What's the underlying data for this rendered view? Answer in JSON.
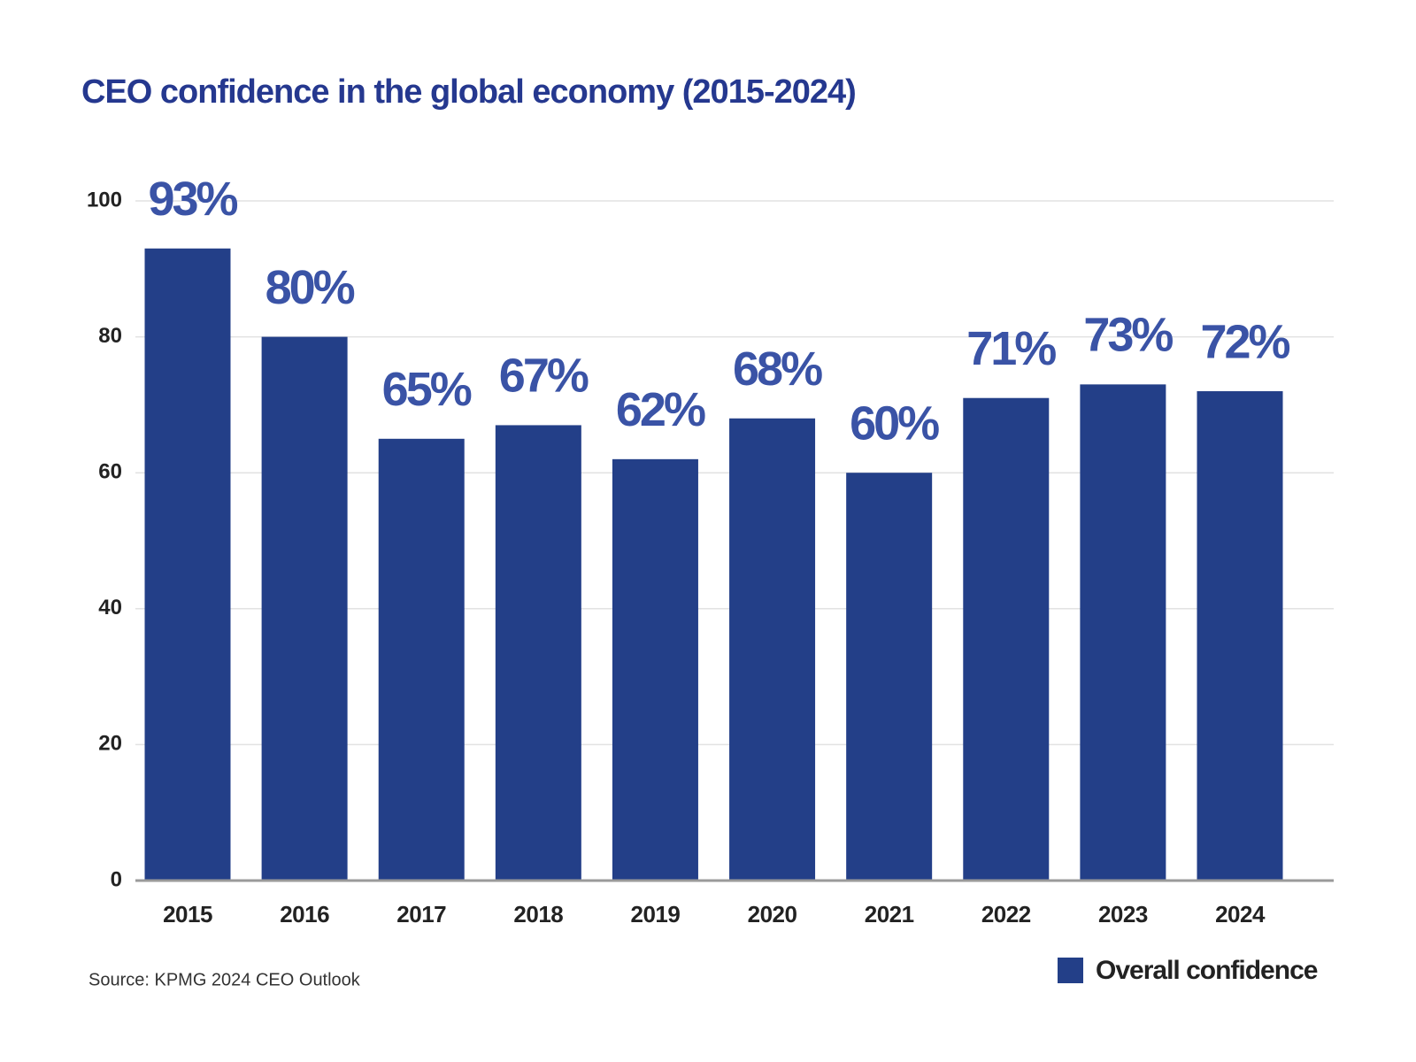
{
  "chart_data": {
    "type": "bar",
    "title": "CEO confidence in the global economy (2015-2024)",
    "categories": [
      "2015",
      "2016",
      "2017",
      "2018",
      "2019",
      "2020",
      "2021",
      "2022",
      "2023",
      "2024"
    ],
    "series": [
      {
        "name": "Overall confidence",
        "color": "#233f88",
        "values": [
          93,
          80,
          65,
          67,
          62,
          68,
          60,
          71,
          73,
          72
        ],
        "value_labels": [
          "93%",
          "80%",
          "65%",
          "67%",
          "62%",
          "68%",
          "60%",
          "71%",
          "73%",
          "72%"
        ]
      }
    ],
    "ylim": [
      0,
      100
    ],
    "yticks": [
      0,
      20,
      40,
      60,
      80,
      100
    ],
    "grid": true,
    "legend": "bottom-right",
    "source": "Source: KPMG 2024 CEO Outlook"
  }
}
